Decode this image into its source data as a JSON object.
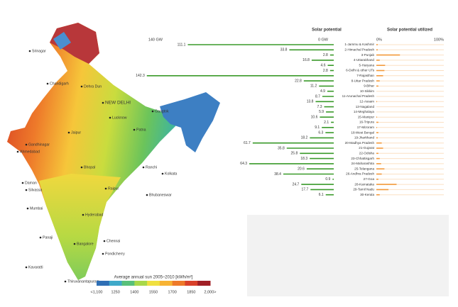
{
  "chart_data": [
    {
      "type": "hbar",
      "title": "Solar potential",
      "color": "#3a9a2a",
      "categories": [
        "1-Jammu & Kashmir",
        "2-Himachal Pradesh",
        "3-Punjab",
        "4-Uttarakhand",
        "5-Haryana",
        "6-Delhi & other UTs",
        "7-Rajasthan",
        "8-Uttar Pradesh",
        "9-Bihar",
        "10-Sikkim",
        "11-Arunachal Pradesh",
        "12-Assam",
        "13-Nagaland",
        "14-Meghalaya",
        "15-Manipur",
        "16-Tripura",
        "17-Mizoram",
        "18-West Bengal",
        "19-Jharkhand",
        "20-Madhya Pradesh",
        "21-Gujarat",
        "22-Odisha",
        "23-Chhattisgarh",
        "24-Maharashtra",
        "25-Telangana",
        "26-Andhra Pradesh",
        "27-Goa",
        "28-Karnataka",
        "29-Tamil Nadu",
        "30-Kerala"
      ],
      "values": [
        111.1,
        33.8,
        2.8,
        16.8,
        4.6,
        2.8,
        142.3,
        22.8,
        11.2,
        4.9,
        8.7,
        13.8,
        7.3,
        5.9,
        10.6,
        2.1,
        9.1,
        6.3,
        18.2,
        61.7,
        35.8,
        25.8,
        18.3,
        64.3,
        20.6,
        38.4,
        0.9,
        24.7,
        17.7,
        6.1
      ],
      "xlim": [
        0,
        140
      ],
      "xticks": [
        {
          "value": 140,
          "label": "140 GW"
        },
        {
          "value": 0,
          "label": "0 GW"
        }
      ]
    },
    {
      "type": "hbar-track",
      "title": "Solar potential utilized",
      "color": "#f39a3c",
      "values": [
        2,
        2,
        35,
        5,
        13,
        12,
        10,
        5,
        3,
        0,
        0,
        1,
        0,
        0,
        1,
        3,
        1,
        3,
        2,
        8,
        10,
        3,
        5,
        7,
        12,
        8,
        3,
        30,
        18,
        5
      ],
      "xlim": [
        0,
        100
      ],
      "xticks": [
        {
          "value": 0,
          "label": "0%"
        },
        {
          "value": 100,
          "label": "100%"
        }
      ]
    },
    {
      "type": "colorbar",
      "title": "Average annual sun 2005–2010 [kWh/m²]",
      "colors": [
        "#2f6fb5",
        "#3fa9c9",
        "#58c07a",
        "#a8d84a",
        "#f0e040",
        "#f7b334",
        "#ee7a2a",
        "#d9412a",
        "#a01f26"
      ],
      "xlim": [
        1100,
        2000
      ],
      "xticks": [
        {
          "value": 1100,
          "label": "<1,100"
        },
        1250,
        1400,
        1550,
        1700,
        1850,
        {
          "value": 2000,
          "label": "2,000>"
        }
      ]
    }
  ],
  "map": {
    "city_labels": [
      "Srinagar",
      "Chandigarh",
      "Dehra Dun",
      "NEW DELHI",
      "Lucknow",
      "Jaipur",
      "Patna",
      "Gandhinagar",
      "Ahmedabad",
      "Bhopal",
      "Ranchi",
      "Kolkata",
      "Raipur",
      "Bhubaneswar",
      "Mumbai",
      "Hyderabad",
      "Panaji",
      "Bangalore",
      "Chennai",
      "Pondicherry",
      "Kavaratti",
      "Thiruvanantapuram",
      "Gangtok",
      "Silvassa",
      "Daman"
    ]
  }
}
